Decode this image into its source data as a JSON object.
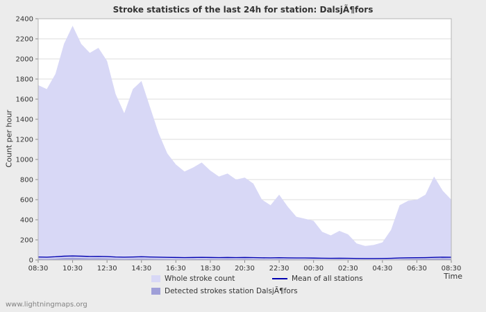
{
  "page": {
    "watermark": "www.lightningmaps.org"
  },
  "legend": [
    {
      "label": "Whole stroke count",
      "type": "area",
      "color": "#d8d8f6"
    },
    {
      "label": "Mean of all stations",
      "type": "line",
      "color": "#0000b0"
    },
    {
      "label": "Detected strokes station DalsjÃ¶fors",
      "type": "area",
      "color": "#9f9fd8"
    }
  ],
  "chart_data": {
    "type": "area",
    "title": "Stroke statistics of the last 24h for station: DalsjÃ¶fors",
    "xlabel": "Time",
    "ylabel": "Count per hour",
    "ylim": [
      0,
      2400
    ],
    "y_ticks": [
      0,
      200,
      400,
      600,
      800,
      1000,
      1200,
      1400,
      1600,
      1800,
      2000,
      2200,
      2400
    ],
    "x_tick_labels": [
      "08:30",
      "10:30",
      "12:30",
      "14:30",
      "16:30",
      "18:30",
      "20:30",
      "22:30",
      "00:30",
      "02:30",
      "04:30",
      "06:30",
      "08:30"
    ],
    "x_tick_indices": [
      0,
      4,
      8,
      12,
      16,
      20,
      24,
      28,
      32,
      36,
      40,
      44,
      48
    ],
    "grid": true,
    "legend_position": "bottom",
    "series": [
      {
        "name": "Whole stroke count",
        "type": "area",
        "color": "#d8d8f6",
        "values": [
          1740,
          1700,
          1850,
          2150,
          2330,
          2150,
          2060,
          2110,
          1980,
          1650,
          1460,
          1700,
          1780,
          1520,
          1260,
          1060,
          950,
          880,
          920,
          970,
          890,
          830,
          860,
          800,
          820,
          760,
          600,
          545,
          650,
          530,
          430,
          410,
          390,
          280,
          245,
          290,
          255,
          165,
          140,
          150,
          175,
          300,
          545,
          590,
          600,
          650,
          830,
          690,
          600
        ]
      },
      {
        "name": "Detected strokes station Dalsjofors",
        "type": "area",
        "color": "#9f9fd8",
        "values": [
          12,
          10,
          14,
          20,
          24,
          20,
          17,
          18,
          16,
          13,
          11,
          13,
          15,
          13,
          11,
          10,
          9,
          9,
          10,
          11,
          10,
          9,
          10,
          9,
          10,
          9,
          8,
          7,
          9,
          8,
          7,
          7,
          6,
          5,
          5,
          6,
          5,
          4,
          3,
          3,
          4,
          6,
          9,
          11,
          12,
          13,
          15,
          16,
          14
        ]
      },
      {
        "name": "Mean of all stations",
        "type": "line",
        "color": "#0000b0",
        "values": [
          30,
          28,
          32,
          38,
          40,
          38,
          35,
          36,
          34,
          30,
          28,
          30,
          32,
          30,
          28,
          26,
          25,
          24,
          25,
          26,
          25,
          24,
          25,
          24,
          25,
          24,
          22,
          21,
          23,
          21,
          20,
          20,
          19,
          18,
          17,
          18,
          17,
          15,
          14,
          14,
          15,
          17,
          20,
          22,
          23,
          24,
          26,
          28,
          27
        ]
      }
    ]
  }
}
